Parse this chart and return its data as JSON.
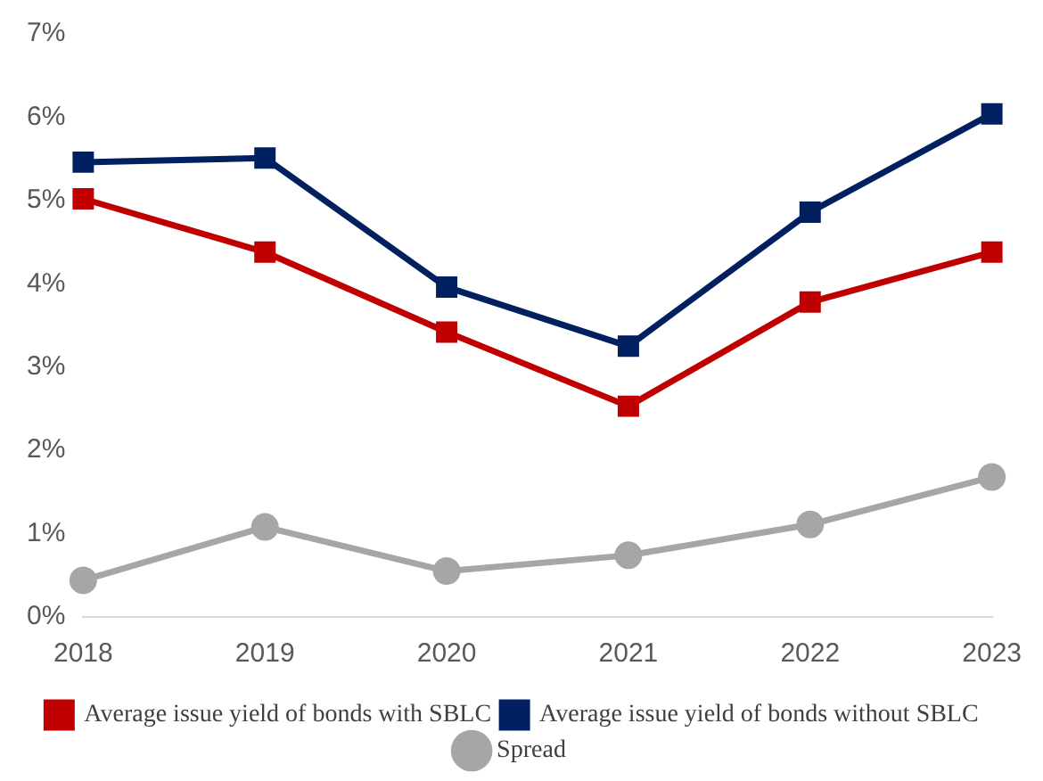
{
  "chart_data": {
    "type": "line",
    "categories": [
      "2018",
      "2019",
      "2020",
      "2021",
      "2022",
      "2023"
    ],
    "series": [
      {
        "name": "Average issue yield of bonds with SBLC",
        "color": "#c00000",
        "marker": "square",
        "values": [
          5.02,
          4.38,
          3.42,
          2.53,
          3.78,
          4.38
        ]
      },
      {
        "name": "Average issue yield of bonds without SBLC",
        "color": "#002060",
        "marker": "square",
        "values": [
          5.46,
          5.51,
          3.96,
          3.25,
          4.86,
          6.04
        ]
      },
      {
        "name": "Spread",
        "color": "#a6a6a6",
        "marker": "circle",
        "values": [
          0.44,
          1.08,
          0.55,
          0.74,
          1.11,
          1.68
        ]
      }
    ],
    "ylim": [
      0,
      7
    ],
    "yticks": [
      {
        "value": 0,
        "label": "0%"
      },
      {
        "value": 1,
        "label": "1%"
      },
      {
        "value": 2,
        "label": "2%"
      },
      {
        "value": 3,
        "label": "3%"
      },
      {
        "value": 4,
        "label": "4%"
      },
      {
        "value": 5,
        "label": "5%"
      },
      {
        "value": 6,
        "label": "6%"
      },
      {
        "value": 7,
        "label": "7%"
      }
    ],
    "grid": false,
    "legend": "bottom",
    "line_style": "solid"
  }
}
